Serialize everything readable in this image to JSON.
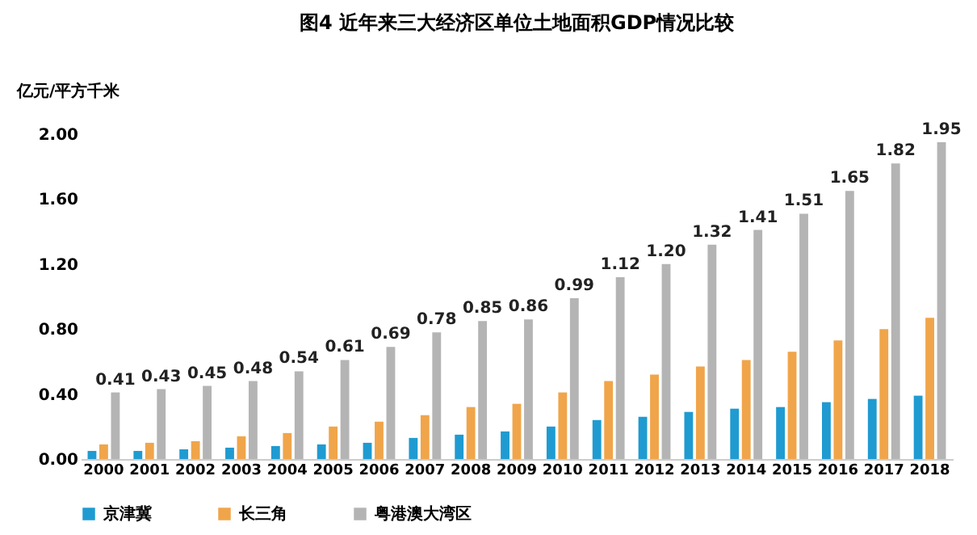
{
  "chart_data": {
    "type": "bar",
    "title": "图4 近年来三大经济区单位土地面积GDP情况比较",
    "ylabel": "亿元/平方千米",
    "categories": [
      "2000",
      "2001",
      "2002",
      "2003",
      "2004",
      "2005",
      "2006",
      "2007",
      "2008",
      "2009",
      "2010",
      "2011",
      "2012",
      "2013",
      "2014",
      "2015",
      "2016",
      "2017",
      "2018"
    ],
    "series": [
      {
        "name": "京津冀",
        "color": "#1f9bd1",
        "values": [
          0.05,
          0.05,
          0.06,
          0.07,
          0.08,
          0.09,
          0.1,
          0.13,
          0.15,
          0.17,
          0.2,
          0.24,
          0.26,
          0.29,
          0.31,
          0.32,
          0.35,
          0.37,
          0.39
        ]
      },
      {
        "name": "长三角",
        "color": "#f0a54a",
        "values": [
          0.09,
          0.1,
          0.11,
          0.14,
          0.16,
          0.2,
          0.23,
          0.27,
          0.32,
          0.34,
          0.41,
          0.48,
          0.52,
          0.57,
          0.61,
          0.66,
          0.73,
          0.8,
          0.87
        ]
      },
      {
        "name": "粤港澳大湾区",
        "color": "#b4b4b4",
        "values": [
          0.41,
          0.43,
          0.45,
          0.48,
          0.54,
          0.61,
          0.69,
          0.78,
          0.85,
          0.86,
          0.99,
          1.12,
          1.2,
          1.32,
          1.41,
          1.51,
          1.65,
          1.82,
          1.95
        ],
        "value_labels": [
          "0.41",
          "0.43",
          "0.45",
          "0.48",
          "0.54",
          "0.61",
          "0.69",
          "0.78",
          "0.85",
          "0.86",
          "0.99",
          "1.12",
          "1.20",
          "1.32",
          "1.41",
          "1.51",
          "1.65",
          "1.82",
          "1.95"
        ]
      }
    ],
    "ylim": [
      0,
      2.0
    ],
    "yticks": [
      {
        "value": 0,
        "label": "0.00"
      },
      {
        "value": 0.4,
        "label": "0.40"
      },
      {
        "value": 0.8,
        "label": "0.80"
      },
      {
        "value": 1.2,
        "label": "1.20"
      },
      {
        "value": 1.6,
        "label": "1.60"
      },
      {
        "value": 2.0,
        "label": "2.00"
      }
    ],
    "grid": false,
    "legend": "bottom"
  }
}
